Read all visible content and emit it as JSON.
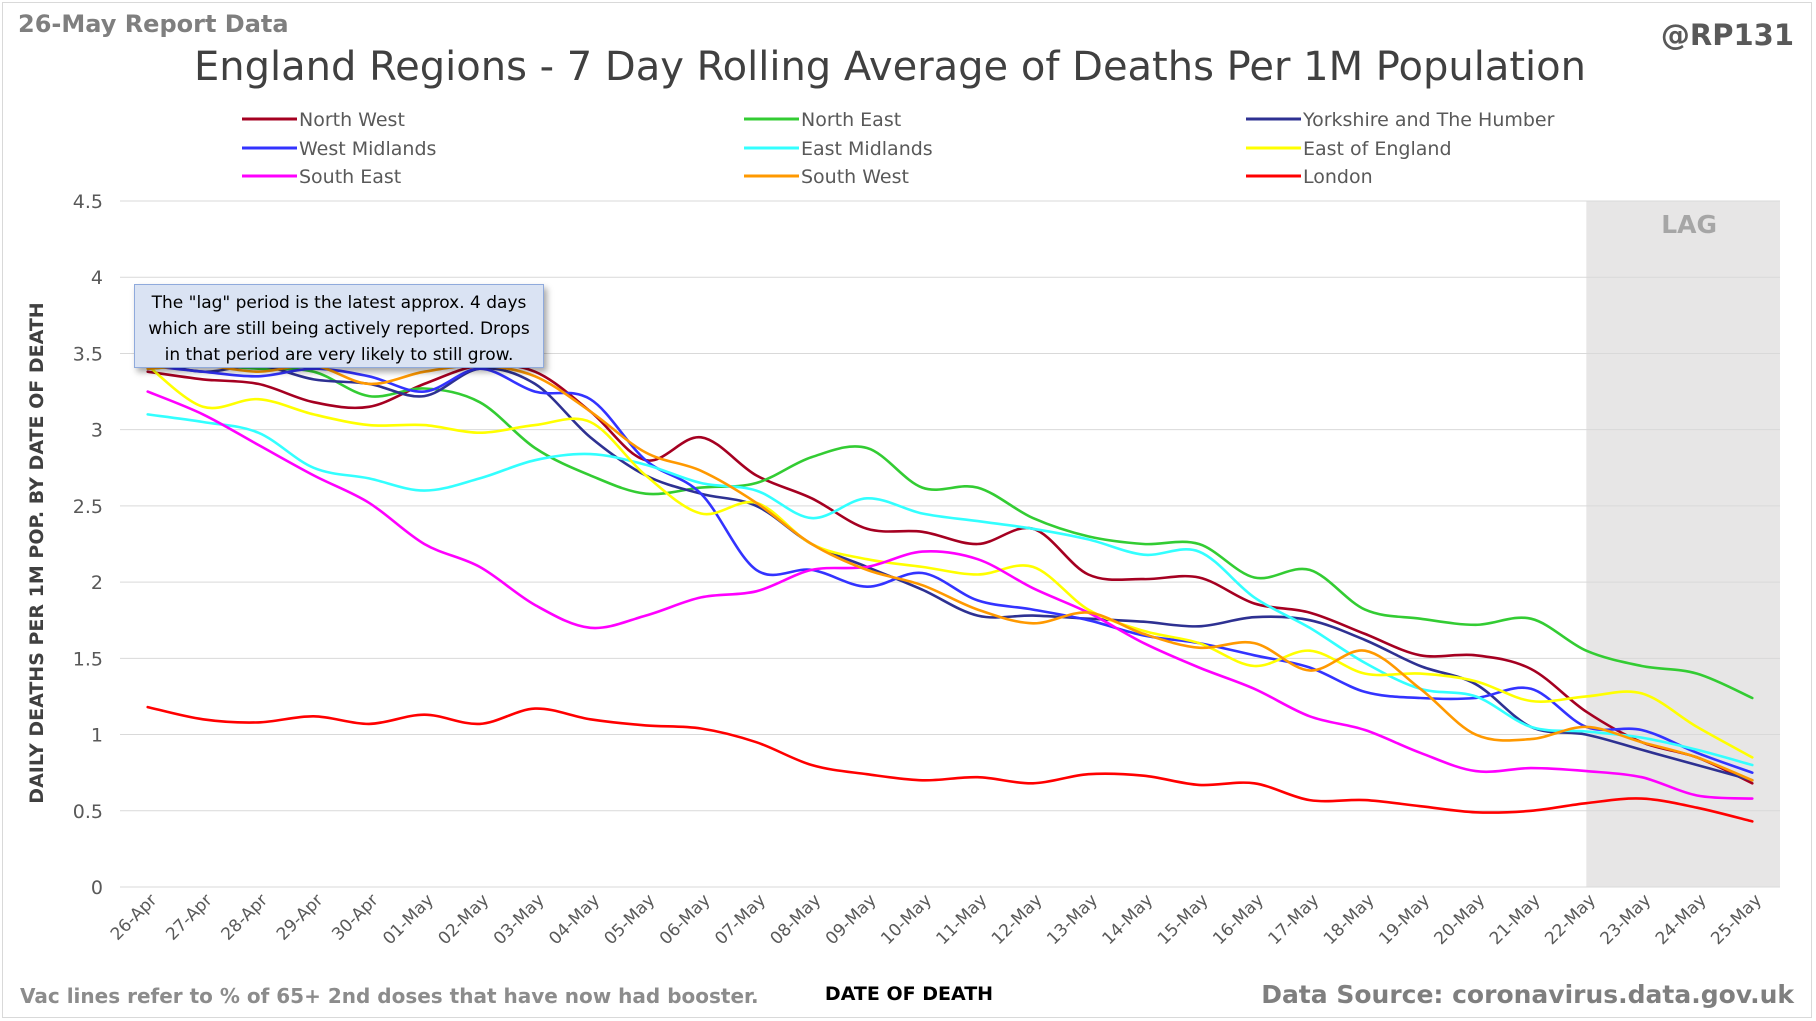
{
  "header": {
    "report_label": "26-May Report Data",
    "handle": "@RP131"
  },
  "footer": {
    "note": "Vac lines refer to % of 65+ 2nd doses that have now had booster.",
    "source": "Data Source: coronavirus.data.gov.uk"
  },
  "callout": {
    "text": "The \"lag\" period is the latest approx. 4 days which are still being actively reported.  Drops in that period are very likely to still grow."
  },
  "chart_data": {
    "type": "line",
    "title": "England Regions - 7 Day Rolling Average of Deaths Per 1M Population",
    "xlabel": "DATE OF DEATH",
    "ylabel": "DAILY DEATHS PER 1M POP. BY DATE OF DEATH",
    "ylim": [
      0,
      4.5
    ],
    "yticks": [
      0,
      0.5,
      1,
      1.5,
      2,
      2.5,
      3,
      3.5,
      4,
      4.5
    ],
    "ytick_labels": [
      "0",
      "0.5",
      "1",
      "1.5",
      "2",
      "2.5",
      "3",
      "3.5",
      "4",
      "4.5"
    ],
    "grid": true,
    "legend_position": "top",
    "lag_region": {
      "label": "LAG",
      "start": "22-May",
      "end": "25-May",
      "color": "#e7e6e6"
    },
    "categories": [
      "26-Apr",
      "27-Apr",
      "28-Apr",
      "29-Apr",
      "30-Apr",
      "01-May",
      "02-May",
      "03-May",
      "04-May",
      "05-May",
      "06-May",
      "07-May",
      "08-May",
      "09-May",
      "10-May",
      "11-May",
      "12-May",
      "13-May",
      "14-May",
      "15-May",
      "16-May",
      "17-May",
      "18-May",
      "19-May",
      "20-May",
      "21-May",
      "22-May",
      "23-May",
      "24-May",
      "25-May"
    ],
    "series": [
      {
        "name": "North West",
        "color": "#a50021",
        "values": [
          3.38,
          3.33,
          3.3,
          3.18,
          3.15,
          3.3,
          3.42,
          3.38,
          3.12,
          2.8,
          2.95,
          2.7,
          2.55,
          2.35,
          2.33,
          2.25,
          2.35,
          2.05,
          2.02,
          2.03,
          1.86,
          1.8,
          1.66,
          1.52,
          1.52,
          1.43,
          1.15,
          0.95,
          0.85,
          0.68
        ]
      },
      {
        "name": "North East",
        "color": "#33cc33",
        "values": [
          3.4,
          3.42,
          3.4,
          3.38,
          3.22,
          3.27,
          3.18,
          2.88,
          2.7,
          2.58,
          2.62,
          2.65,
          2.82,
          2.88,
          2.62,
          2.62,
          2.42,
          2.3,
          2.25,
          2.25,
          2.03,
          2.08,
          1.82,
          1.76,
          1.72,
          1.76,
          1.55,
          1.45,
          1.4,
          1.24
        ]
      },
      {
        "name": "Yorkshire and The Humber",
        "color": "#2e3192",
        "values": [
          3.45,
          3.38,
          3.42,
          3.33,
          3.3,
          3.22,
          3.4,
          3.3,
          2.95,
          2.7,
          2.58,
          2.5,
          2.25,
          2.1,
          1.95,
          1.78,
          1.78,
          1.76,
          1.74,
          1.71,
          1.77,
          1.75,
          1.62,
          1.45,
          1.33,
          1.05,
          1.0,
          0.9,
          0.8,
          0.7
        ]
      },
      {
        "name": "West Midlands",
        "color": "#3333ff",
        "values": [
          3.42,
          3.38,
          3.35,
          3.4,
          3.35,
          3.25,
          3.4,
          3.25,
          3.2,
          2.8,
          2.58,
          2.08,
          2.08,
          1.97,
          2.06,
          1.88,
          1.82,
          1.75,
          1.65,
          1.6,
          1.52,
          1.44,
          1.28,
          1.24,
          1.24,
          1.3,
          1.05,
          1.03,
          0.88,
          0.75
        ]
      },
      {
        "name": "East Midlands",
        "color": "#33ffff",
        "values": [
          3.1,
          3.05,
          2.98,
          2.75,
          2.68,
          2.6,
          2.68,
          2.8,
          2.84,
          2.77,
          2.65,
          2.6,
          2.42,
          2.55,
          2.45,
          2.4,
          2.35,
          2.28,
          2.18,
          2.2,
          1.9,
          1.7,
          1.47,
          1.3,
          1.25,
          1.05,
          1.02,
          0.98,
          0.9,
          0.8
        ]
      },
      {
        "name": "East of England",
        "color": "#ffff00",
        "values": [
          3.42,
          3.15,
          3.2,
          3.1,
          3.03,
          3.03,
          2.98,
          3.03,
          3.05,
          2.7,
          2.45,
          2.52,
          2.25,
          2.15,
          2.1,
          2.05,
          2.1,
          1.82,
          1.68,
          1.6,
          1.45,
          1.55,
          1.4,
          1.4,
          1.35,
          1.22,
          1.25,
          1.27,
          1.05,
          0.85
        ]
      },
      {
        "name": "South East",
        "color": "#ff00ff",
        "values": [
          3.25,
          3.1,
          2.9,
          2.7,
          2.52,
          2.25,
          2.1,
          1.85,
          1.7,
          1.78,
          1.9,
          1.94,
          2.08,
          2.1,
          2.2,
          2.15,
          1.96,
          1.8,
          1.6,
          1.44,
          1.3,
          1.12,
          1.03,
          0.88,
          0.76,
          0.78,
          0.76,
          0.72,
          0.6,
          0.58
        ]
      },
      {
        "name": "South West",
        "color": "#ff9900",
        "values": [
          3.4,
          3.42,
          3.38,
          3.42,
          3.3,
          3.38,
          3.42,
          3.35,
          3.12,
          2.85,
          2.73,
          2.52,
          2.25,
          2.08,
          1.98,
          1.82,
          1.73,
          1.8,
          1.66,
          1.57,
          1.6,
          1.42,
          1.55,
          1.3,
          1.0,
          0.97,
          1.05,
          0.95,
          0.85,
          0.7
        ]
      },
      {
        "name": "London",
        "color": "#ff0000",
        "values": [
          1.18,
          1.1,
          1.08,
          1.12,
          1.07,
          1.13,
          1.07,
          1.17,
          1.1,
          1.06,
          1.04,
          0.95,
          0.8,
          0.74,
          0.7,
          0.72,
          0.68,
          0.74,
          0.73,
          0.67,
          0.68,
          0.57,
          0.57,
          0.53,
          0.49,
          0.5,
          0.55,
          0.58,
          0.52,
          0.43
        ]
      }
    ]
  }
}
